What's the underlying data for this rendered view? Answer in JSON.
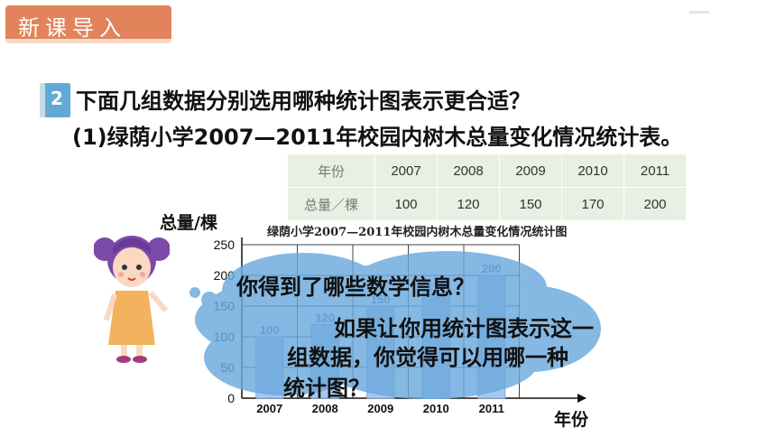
{
  "header": {
    "banner": "新课导入"
  },
  "question": {
    "number": "2",
    "prompt": "下面几组数据分别选用哪种统计图表示更合适？",
    "item": "(1)绿荫小学2007—2011年校园内树木总量变化情况统计表。"
  },
  "table": {
    "row_headers": [
      "年份",
      "总量／棵"
    ],
    "years": [
      "2007",
      "2008",
      "2009",
      "2010",
      "2011"
    ],
    "totals": [
      "100",
      "120",
      "150",
      "170",
      "200"
    ]
  },
  "chart_data": {
    "type": "bar",
    "title": "绿荫小学2007—2011年校园内树木总量变化情况统计图",
    "ylabel": "总量/棵",
    "xlabel": "年份",
    "categories": [
      "2007",
      "2008",
      "2009",
      "2010",
      "2011"
    ],
    "values": [
      100,
      120,
      150,
      170,
      200
    ],
    "ylim": [
      0,
      250
    ],
    "yticks": [
      "0",
      "50",
      "100",
      "150",
      "200",
      "250"
    ],
    "grid": true,
    "bar_color": "#a6c8f0",
    "label_color": "#3a72c8"
  },
  "speech": {
    "line1": "你得到了哪些数学信息？",
    "line2": "如果让你用统计图表示这一",
    "line3": "组数据，你觉得可以用哪一种",
    "line4": "统计图？"
  },
  "colors": {
    "banner": "#e2835c",
    "cloud": "#6ba9dc",
    "badge": "#62a9d8"
  }
}
